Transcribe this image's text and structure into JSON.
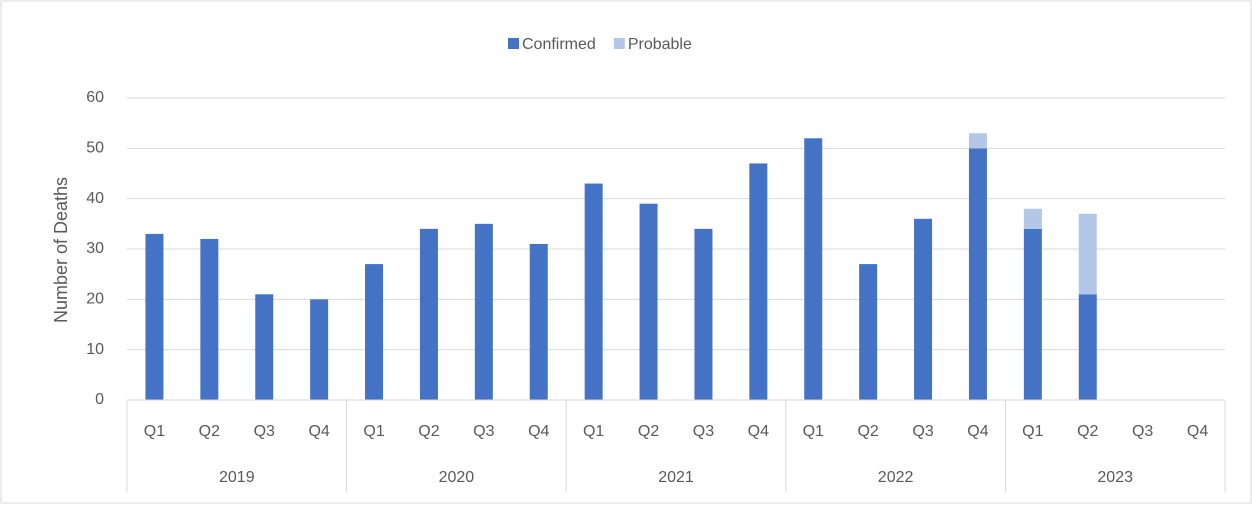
{
  "chart_data": {
    "type": "stacked_bar",
    "y_label": "Number of Deaths",
    "categories": [
      "Q1",
      "Q2",
      "Q3",
      "Q4",
      "Q1",
      "Q2",
      "Q3",
      "Q4",
      "Q1",
      "Q2",
      "Q3",
      "Q4",
      "Q1",
      "Q2",
      "Q3",
      "Q4",
      "Q1",
      "Q2",
      "Q3",
      "Q4"
    ],
    "groups": [
      "2019",
      "2020",
      "2021",
      "2022",
      "2023"
    ],
    "series": [
      {
        "name": "Confirmed",
        "color": "#4472c4",
        "values": [
          33,
          32,
          21,
          20,
          27,
          34,
          35,
          31,
          43,
          39,
          34,
          47,
          52,
          27,
          36,
          50,
          34,
          21,
          null,
          null
        ]
      },
      {
        "name": "Probable",
        "color": "#b4c7e7",
        "values": [
          0,
          0,
          0,
          0,
          0,
          0,
          0,
          0,
          0,
          0,
          0,
          0,
          0,
          0,
          0,
          3,
          4,
          16,
          null,
          null
        ]
      }
    ],
    "ylim": [
      0,
      60
    ],
    "yticks": [
      0,
      10,
      20,
      30,
      40,
      50,
      60
    ],
    "grid": true,
    "legend": "top"
  }
}
